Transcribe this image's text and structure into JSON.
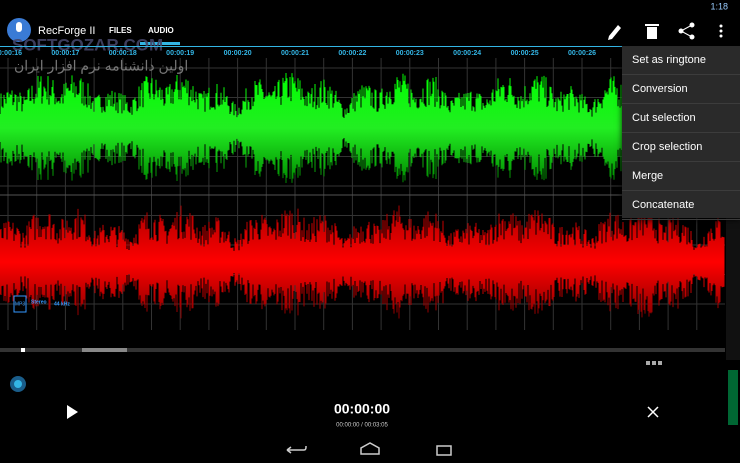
{
  "status_bar": {
    "time": "1:18"
  },
  "app_bar": {
    "title": "RecForge II",
    "tabs": [
      "FILES",
      "AUDIO"
    ]
  },
  "watermark": {
    "site": "SOFTGOZAR.COM",
    "tagline": "اولین دانشنامه نرم افزار ایران"
  },
  "timeline": [
    "00:00:16",
    "00:00:17",
    "00:00:18",
    "00:00:19",
    "00:00:20",
    "00:00:21",
    "00:00:22",
    "00:00:23",
    "00:00:24",
    "00:00:25",
    "00:00:26"
  ],
  "menu": [
    "Set as ringtone",
    "Conversion",
    "Cut selection",
    "Crop selection",
    "Merge",
    "Concatenate"
  ],
  "format": {
    "channels": "Stereo",
    "rate": "44 kHz",
    "codec": "MP3"
  },
  "player": {
    "position": "00:00:00",
    "progress": "00:00:00 / 00:03:05"
  }
}
